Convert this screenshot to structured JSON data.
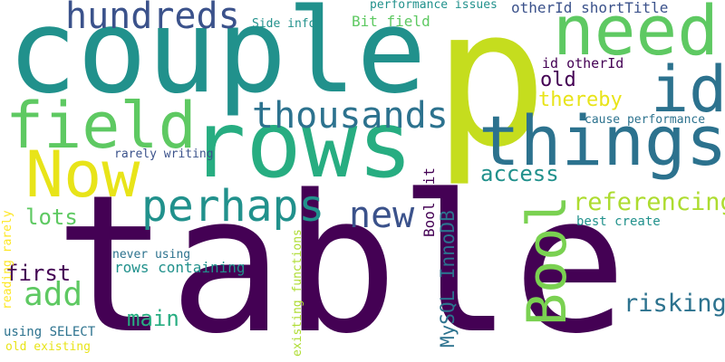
{
  "palette": {
    "dark_purple": "#440154",
    "indigo": "#3b528b",
    "steel_blue": "#2c728e",
    "teal": "#21918c",
    "sea_green": "#27ad81",
    "green": "#5ec962",
    "yellow_green": "#addc30",
    "yellow": "#fde725"
  },
  "words": {
    "table": "table",
    "couple": "couple",
    "p": "p",
    "rows": "rows",
    "things": "things",
    "need": "need",
    "id": "id",
    "field": "field",
    "Now": "Now",
    "Bool": "Bool",
    "hundreds": "hundreds",
    "thousands": "thousands",
    "perhaps": "perhaps",
    "new": "new",
    "referencing": "referencing",
    "add": "add",
    "lots": "lots",
    "risking": "risking",
    "access": "access",
    "main": "main",
    "first": "first",
    "old": "old",
    "thereby": "thereby",
    "otherId_shortTitle": "otherId shortTitle",
    "id_otherId": "id otherId",
    "Bit_field": "Bit field",
    "performance_issues": "performance issues",
    "Side_info": "Side info",
    "cause_performance": "cause performance",
    "rarely_writing": "rarely writing",
    "best_create": "best create",
    "rows_containing": "rows containing",
    "never_using": "never using",
    "using_SELECT": "using SELECT",
    "old_existing": "old existing",
    "MySQL_InnoDB": "MySQL InnoDB",
    "Bool_Bit": "Bool Bit",
    "existing_functions": "existing functions",
    "reading_rarely": "reading rarely"
  }
}
